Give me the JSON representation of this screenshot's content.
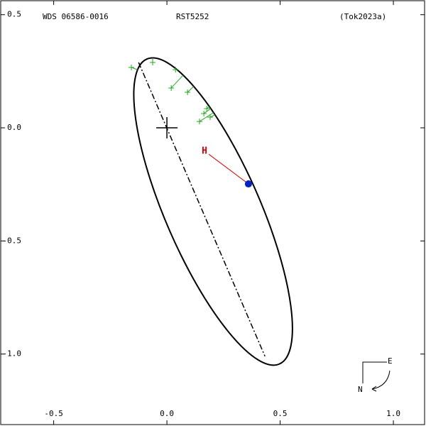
{
  "chart_data": {
    "type": "orbit",
    "title": "WDS 06586-0016",
    "subtitle": "RST5252",
    "reference": "(Tok2023a)",
    "xlim": [
      -0.737,
      1.144
    ],
    "ylim": [
      -1.318,
      0.565
    ],
    "xticks": [
      -0.5,
      {
        "value": 0,
        "label": "0.0"
      },
      0.5,
      {
        "value": 1,
        "label": "1.0"
      }
    ],
    "yticks": [
      0.5,
      {
        "value": 0,
        "label": "0.0"
      },
      -0.5,
      {
        "value": -1,
        "label": "-1.0"
      }
    ],
    "orbit": {
      "center": [
        0.204,
        -0.37
      ],
      "semi_major": 0.734,
      "semi_minor": 0.21,
      "angle": -66.5,
      "color": "#000000"
    },
    "line_of_nodes": {
      "x": [
        -0.125,
        0.433
      ],
      "y": [
        0.289,
        -1.01
      ]
    },
    "primary": [
      0,
      0
    ],
    "observations": {
      "color": "#22aa22",
      "x": [
        -0.157,
        -0.063,
        0.038,
        0.019,
        0.091,
        0.176,
        0.163,
        0.191,
        0.144
      ],
      "y": [
        0.267,
        0.289,
        0.257,
        0.176,
        0.157,
        0.085,
        0.063,
        0.047,
        0.028
      ]
    },
    "current": {
      "x": 0.36,
      "y": -0.248,
      "color": "#0022cc"
    },
    "hipparcos": {
      "label": "H",
      "x": 0.166,
      "y": -0.104,
      "color": "#dd0000"
    },
    "compass": {
      "east": "E",
      "north": "N"
    }
  }
}
